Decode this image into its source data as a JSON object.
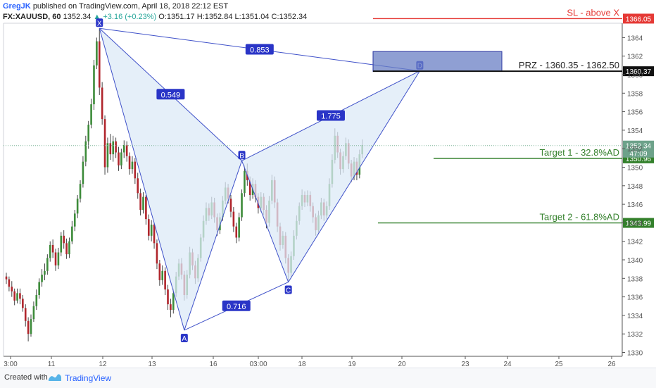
{
  "header": {
    "author": "GregJK",
    "published": "published on TradingView.com, April 18, 2018 22:12 EST",
    "symbol": "FX:XAUUSD, 60",
    "last": "1352.34",
    "change": "▲ +3.16 (+0.23%)",
    "ohlc": "O:1351.17 H:1352.84 L:1351.04 C:1352.34"
  },
  "footer": {
    "created": "Created with",
    "brand": "TradingView"
  },
  "colors": {
    "pattern_line": "#3f51c9",
    "pattern_fill": "#dce9f7",
    "sl": "#e53935",
    "target": "#33802b",
    "prz_box": "#6a7fc4",
    "axis_text": "#555555"
  },
  "chart_data": {
    "type": "candlestick",
    "symbol": "FX:XAUUSD",
    "interval": "60",
    "y_ticks": [
      1330,
      1332,
      1334,
      1336,
      1338,
      1340,
      1342,
      1344,
      1346,
      1348,
      1350,
      1352,
      1354,
      1356,
      1358,
      1360,
      1362,
      1364
    ],
    "x_ticks": [
      "3:00",
      "11",
      "12",
      "13",
      "16",
      "03:00",
      "18",
      "19",
      "20",
      "23",
      "24",
      "25",
      "26"
    ],
    "pattern": {
      "points": [
        {
          "label": "X",
          "bar": 34,
          "price": 1365.0
        },
        {
          "label": "A",
          "bar": 65,
          "price": 1332.4
        },
        {
          "label": "B",
          "bar": 86,
          "price": 1350.7
        },
        {
          "label": "C",
          "bar": 103,
          "price": 1337.6
        },
        {
          "label": "D",
          "bar": 151,
          "price": 1360.4
        }
      ],
      "ratios": [
        {
          "label": "0.549",
          "from": "X",
          "to": "B"
        },
        {
          "label": "0.716",
          "from": "A",
          "to": "C"
        },
        {
          "label": "1.775",
          "from": "B",
          "to": "D"
        },
        {
          "label": "0.853",
          "from": "X",
          "to": "D"
        }
      ]
    },
    "levels": [
      {
        "name": "sl",
        "price": 1366.05,
        "label": "SL - above X",
        "price_label": "1366.05"
      },
      {
        "name": "prz",
        "price": 1360.37,
        "label": "PRZ - 1360.35 - 1362.50",
        "price_label": "1360.37"
      },
      {
        "name": "target1",
        "price": 1350.96,
        "label": "Target 1 - 32.8%AD",
        "price_label": "1350.96"
      },
      {
        "name": "target2",
        "price": 1343.99,
        "label": "Target 2 - 61.8%AD",
        "price_label": "1343.99"
      }
    ],
    "prz_zone": [
      1360.35,
      1362.5
    ],
    "current_price": {
      "price": 1352.34,
      "label": "1352.34",
      "countdown": "47:09"
    },
    "candles": [
      [
        1338.2,
        1337.9,
        1338.6,
        1337.4
      ],
      [
        1337.9,
        1337.1,
        1338.2,
        1336.6
      ],
      [
        1337.1,
        1336.6,
        1337.7,
        1336.0
      ],
      [
        1336.6,
        1335.6,
        1336.9,
        1335.1
      ],
      [
        1335.6,
        1336.4,
        1336.9,
        1335.3
      ],
      [
        1336.4,
        1335.8,
        1336.9,
        1335.2
      ],
      [
        1335.8,
        1334.8,
        1336.2,
        1334.4
      ],
      [
        1334.8,
        1333.4,
        1335.2,
        1332.8
      ],
      [
        1333.4,
        1332.0,
        1333.8,
        1331.2
      ],
      [
        1332.0,
        1333.6,
        1334.1,
        1331.7
      ],
      [
        1333.6,
        1335.0,
        1335.5,
        1333.3
      ],
      [
        1335.0,
        1336.2,
        1336.8,
        1334.6
      ],
      [
        1336.2,
        1337.6,
        1338.0,
        1335.8
      ],
      [
        1337.6,
        1338.4,
        1339.0,
        1337.1
      ],
      [
        1338.4,
        1338.8,
        1339.6,
        1337.8
      ],
      [
        1338.8,
        1340.2,
        1340.6,
        1338.4
      ],
      [
        1340.2,
        1341.6,
        1342.0,
        1339.8
      ],
      [
        1341.6,
        1340.8,
        1342.2,
        1340.2
      ],
      [
        1340.8,
        1339.4,
        1341.2,
        1338.8
      ],
      [
        1339.4,
        1340.8,
        1341.3,
        1339.0
      ],
      [
        1340.8,
        1342.6,
        1343.0,
        1340.4
      ],
      [
        1342.6,
        1341.8,
        1343.2,
        1341.2
      ],
      [
        1341.8,
        1340.6,
        1342.3,
        1340.1
      ],
      [
        1340.6,
        1342.0,
        1342.4,
        1340.2
      ],
      [
        1342.0,
        1343.6,
        1344.2,
        1341.7
      ],
      [
        1343.6,
        1345.0,
        1345.4,
        1343.1
      ],
      [
        1345.0,
        1346.6,
        1347.0,
        1344.5
      ],
      [
        1346.6,
        1348.2,
        1348.6,
        1346.2
      ],
      [
        1348.2,
        1350.6,
        1351.2,
        1347.8
      ],
      [
        1350.6,
        1352.8,
        1353.4,
        1350.1
      ],
      [
        1352.8,
        1354.6,
        1355.0,
        1352.0
      ],
      [
        1354.6,
        1356.8,
        1357.4,
        1354.2
      ],
      [
        1356.8,
        1361.0,
        1361.6,
        1356.2
      ],
      [
        1361.0,
        1363.6,
        1364.0,
        1360.6
      ],
      [
        1363.6,
        1358.6,
        1365.0,
        1357.8
      ],
      [
        1358.6,
        1355.2,
        1359.2,
        1354.6
      ],
      [
        1355.2,
        1350.0,
        1355.6,
        1349.2
      ],
      [
        1350.0,
        1352.6,
        1353.2,
        1349.4
      ],
      [
        1352.6,
        1351.4,
        1353.6,
        1350.8
      ],
      [
        1351.4,
        1352.8,
        1353.4,
        1350.6
      ],
      [
        1352.8,
        1351.6,
        1353.2,
        1351.0
      ],
      [
        1351.6,
        1350.2,
        1352.2,
        1349.6
      ],
      [
        1350.2,
        1351.6,
        1352.0,
        1349.8
      ],
      [
        1351.6,
        1352.4,
        1352.9,
        1351.0
      ],
      [
        1352.4,
        1351.2,
        1352.8,
        1350.6
      ],
      [
        1351.2,
        1349.8,
        1351.6,
        1349.2
      ],
      [
        1349.8,
        1350.6,
        1351.2,
        1349.3
      ],
      [
        1350.6,
        1348.8,
        1351.0,
        1348.2
      ],
      [
        1348.8,
        1347.2,
        1349.4,
        1346.6
      ],
      [
        1347.2,
        1345.4,
        1347.7,
        1344.8
      ],
      [
        1345.4,
        1346.8,
        1347.3,
        1345.0
      ],
      [
        1346.8,
        1344.4,
        1347.0,
        1343.8
      ],
      [
        1344.4,
        1342.6,
        1344.9,
        1342.1
      ],
      [
        1342.6,
        1343.8,
        1344.3,
        1342.0
      ],
      [
        1343.8,
        1341.8,
        1344.0,
        1341.2
      ],
      [
        1341.8,
        1339.6,
        1342.2,
        1339.0
      ],
      [
        1339.6,
        1337.8,
        1340.0,
        1337.2
      ],
      [
        1337.8,
        1338.8,
        1339.4,
        1337.3
      ],
      [
        1338.8,
        1336.8,
        1339.2,
        1336.2
      ],
      [
        1336.8,
        1335.2,
        1337.3,
        1334.6
      ],
      [
        1335.2,
        1334.6,
        1335.8,
        1333.8
      ],
      [
        1334.6,
        1336.4,
        1336.9,
        1334.2
      ],
      [
        1336.4,
        1338.2,
        1338.7,
        1336.0
      ],
      [
        1338.2,
        1339.6,
        1340.1,
        1337.8
      ],
      [
        1339.6,
        1338.4,
        1340.2,
        1337.9
      ],
      [
        1338.4,
        1336.2,
        1338.8,
        1335.6
      ],
      [
        1336.2,
        1338.4,
        1338.9,
        1335.8
      ],
      [
        1338.4,
        1340.8,
        1341.4,
        1338.0
      ],
      [
        1340.8,
        1339.4,
        1341.2,
        1338.9
      ],
      [
        1339.4,
        1338.0,
        1339.9,
        1337.4
      ],
      [
        1338.0,
        1340.2,
        1340.6,
        1337.6
      ],
      [
        1340.2,
        1342.4,
        1342.8,
        1339.8
      ],
      [
        1342.4,
        1344.2,
        1344.8,
        1342.0
      ],
      [
        1344.2,
        1345.6,
        1346.2,
        1343.8
      ],
      [
        1345.6,
        1344.8,
        1346.1,
        1344.2
      ],
      [
        1344.8,
        1346.2,
        1346.8,
        1344.4
      ],
      [
        1346.2,
        1344.6,
        1346.7,
        1344.0
      ],
      [
        1344.6,
        1343.2,
        1345.0,
        1342.6
      ],
      [
        1343.2,
        1344.6,
        1345.1,
        1342.8
      ],
      [
        1344.6,
        1346.4,
        1346.9,
        1344.2
      ],
      [
        1346.4,
        1347.8,
        1348.4,
        1346.0
      ],
      [
        1347.8,
        1346.6,
        1348.2,
        1346.1
      ],
      [
        1346.6,
        1345.2,
        1347.0,
        1344.6
      ],
      [
        1345.2,
        1343.6,
        1345.7,
        1343.0
      ],
      [
        1343.6,
        1342.4,
        1344.0,
        1341.8
      ],
      [
        1342.4,
        1344.6,
        1345.1,
        1342.0
      ],
      [
        1344.6,
        1347.2,
        1347.6,
        1344.2
      ],
      [
        1347.2,
        1349.6,
        1350.2,
        1346.8
      ],
      [
        1349.6,
        1348.6,
        1350.4,
        1348.0
      ],
      [
        1348.6,
        1347.0,
        1349.0,
        1346.4
      ],
      [
        1347.0,
        1348.2,
        1348.8,
        1346.6
      ],
      [
        1348.2,
        1346.8,
        1348.6,
        1346.2
      ],
      [
        1346.8,
        1345.6,
        1347.2,
        1345.0
      ],
      [
        1345.6,
        1346.8,
        1347.3,
        1345.2
      ],
      [
        1346.8,
        1345.4,
        1347.2,
        1344.8
      ],
      [
        1345.4,
        1344.0,
        1345.9,
        1343.4
      ],
      [
        1344.0,
        1346.4,
        1346.9,
        1343.6
      ],
      [
        1346.4,
        1348.6,
        1349.2,
        1346.0
      ],
      [
        1348.6,
        1346.2,
        1349.0,
        1345.6
      ],
      [
        1346.2,
        1343.6,
        1346.6,
        1343.0
      ],
      [
        1343.6,
        1341.6,
        1344.0,
        1341.0
      ],
      [
        1341.6,
        1342.6,
        1343.1,
        1341.2
      ],
      [
        1342.6,
        1340.2,
        1343.0,
        1339.6
      ],
      [
        1340.2,
        1338.6,
        1340.6,
        1337.6
      ],
      [
        1338.6,
        1340.4,
        1340.9,
        1338.2
      ],
      [
        1340.4,
        1342.6,
        1343.2,
        1340.0
      ],
      [
        1342.6,
        1344.2,
        1344.8,
        1342.2
      ],
      [
        1344.2,
        1345.8,
        1346.2,
        1343.8
      ],
      [
        1345.8,
        1347.0,
        1347.6,
        1345.4
      ],
      [
        1347.0,
        1346.2,
        1347.4,
        1345.7
      ],
      [
        1346.2,
        1347.0,
        1347.5,
        1345.8
      ],
      [
        1347.0,
        1345.8,
        1347.4,
        1345.2
      ],
      [
        1345.8,
        1344.6,
        1346.2,
        1344.0
      ],
      [
        1344.6,
        1343.2,
        1345.0,
        1342.6
      ],
      [
        1343.2,
        1344.8,
        1345.3,
        1342.8
      ],
      [
        1344.8,
        1346.2,
        1346.7,
        1344.4
      ],
      [
        1346.2,
        1344.8,
        1346.6,
        1344.2
      ],
      [
        1344.8,
        1345.8,
        1346.3,
        1344.4
      ],
      [
        1345.8,
        1348.2,
        1348.8,
        1345.4
      ],
      [
        1348.2,
        1350.8,
        1351.4,
        1347.8
      ],
      [
        1350.8,
        1353.4,
        1354.2,
        1350.4
      ],
      [
        1353.4,
        1351.6,
        1353.8,
        1351.0
      ],
      [
        1351.6,
        1349.8,
        1352.0,
        1349.2
      ],
      [
        1349.8,
        1351.2,
        1351.7,
        1349.4
      ],
      [
        1351.2,
        1352.6,
        1353.2,
        1350.8
      ],
      [
        1352.6,
        1350.4,
        1353.0,
        1349.8
      ],
      [
        1350.4,
        1349.0,
        1350.8,
        1348.4
      ],
      [
        1349.0,
        1350.6,
        1351.1,
        1348.6
      ],
      [
        1350.6,
        1349.2,
        1351.0,
        1348.6
      ],
      [
        1349.2,
        1351.4,
        1351.9,
        1348.8
      ],
      [
        1351.4,
        1352.4,
        1353.0,
        1351.0
      ]
    ]
  }
}
